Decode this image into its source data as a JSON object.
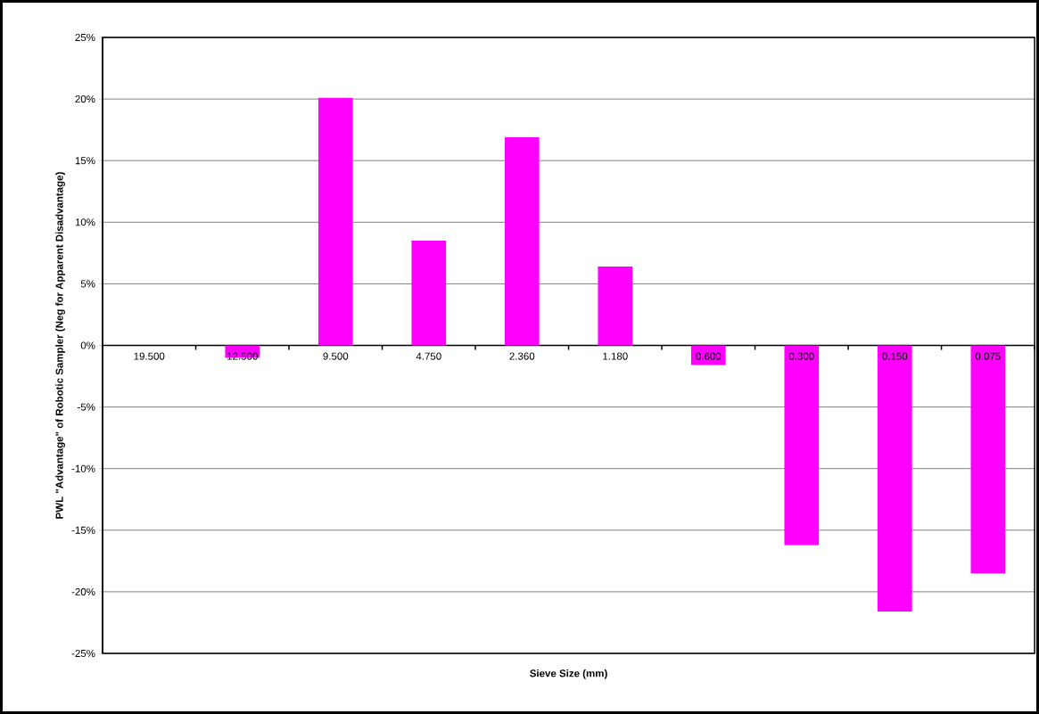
{
  "chart_data": {
    "type": "bar",
    "xlabel": "Sieve Size (mm)",
    "ylabel": "PWL \"Advantage\" of Robotic Sampler (Neg for Apparent Disadvantage)",
    "categories": [
      "19.500",
      "12.500",
      "9.500",
      "4.750",
      "2.360",
      "1.180",
      "0.600",
      "0.300",
      "0.150",
      "0.075"
    ],
    "values": [
      0,
      -1.0,
      20.1,
      8.5,
      16.9,
      6.4,
      -1.6,
      -16.2,
      -21.6,
      -18.5
    ],
    "color": "#ff00ff",
    "ylim": [
      -25,
      25
    ],
    "yticks": [
      {
        "value": -25,
        "label": "-25%"
      },
      {
        "value": -20,
        "label": "-20%"
      },
      {
        "value": -15,
        "label": "-15%"
      },
      {
        "value": -10,
        "label": "-10%"
      },
      {
        "value": -5,
        "label": "-5%"
      },
      {
        "value": 0,
        "label": "0%"
      },
      {
        "value": 5,
        "label": "5%"
      },
      {
        "value": 10,
        "label": "10%"
      },
      {
        "value": 15,
        "label": "15%"
      },
      {
        "value": 20,
        "label": "20%"
      },
      {
        "value": 25,
        "label": "25%"
      }
    ],
    "grid": "y"
  }
}
